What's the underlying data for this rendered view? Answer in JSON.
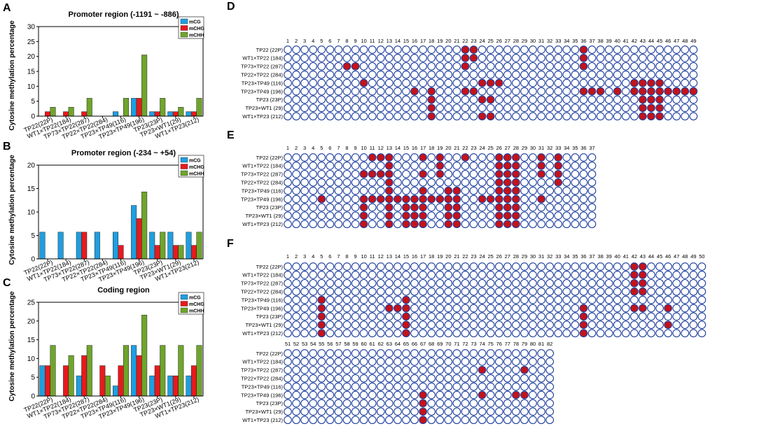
{
  "figure": {
    "colors": {
      "mCG": "#1e9fe0",
      "mCHG": "#e8191d",
      "mCHH": "#6fa52b",
      "dot_filled": "#c4131a",
      "dot_empty": "#1f3f9e"
    },
    "charts_common": {
      "ylabel": "Cytosine methylation percentage",
      "categories": [
        "TP22(22P)",
        "WT1×TP22(184)",
        "TP73×TP22(287)",
        "TP22×TP22(284)",
        "TP23×TP49(116)",
        "TP23×TP49(196)",
        "TP23(23P)",
        "TP23×WT1(29)",
        "WT1×TP23(212)"
      ],
      "legend": [
        "mCG",
        "mCHG",
        "mCHH"
      ]
    },
    "dot_panels": [
      {
        "letter": "D",
        "samples": [
          "TP22 (22P)",
          "WT1×TP22 (184)",
          "TP73×TP22 (287)",
          "TP22×TP22 (284)",
          "TP23×TP49 (116)",
          "TP23×TP49 (196)",
          "TP23 (23P)",
          "TP23×WT1 (29)",
          "WT1×TP23 (212)"
        ],
        "blocks": [
          {
            "start": 1,
            "count": 49,
            "filled": [
              [
                22,
                23,
                36
              ],
              [
                22,
                23,
                36
              ],
              [
                8,
                9,
                22,
                36
              ],
              [],
              [
                10,
                24,
                25,
                26,
                42,
                43,
                44,
                45
              ],
              [
                16,
                18,
                22,
                23,
                36,
                37,
                38,
                40,
                42,
                43,
                44,
                45,
                46,
                47,
                48,
                49
              ],
              [
                18,
                24,
                25,
                43,
                44,
                45
              ],
              [
                18,
                43,
                44,
                45
              ],
              [
                18,
                24,
                25,
                43,
                44,
                45
              ]
            ]
          }
        ]
      },
      {
        "letter": "E",
        "samples": [
          "TP22 (22P)",
          "WT1×TP22 (184)",
          "TP73×TP22 (287)",
          "TP22×TP22 (284)",
          "TP23×TP49 (116)",
          "TP23×TP49 (196)",
          "TP23 (23P)",
          "TP23×WT1 (29)",
          "WT1×TP23 (212)"
        ],
        "blocks": [
          {
            "start": 1,
            "count": 37,
            "filled": [
              [
                11,
                12,
                13,
                17,
                19,
                22,
                26,
                27,
                28,
                31,
                33
              ],
              [
                13,
                19,
                26,
                27,
                28,
                31,
                33
              ],
              [
                10,
                11,
                12,
                13,
                17,
                19,
                26,
                27,
                28,
                31,
                33
              ],
              [
                13,
                26,
                27,
                28,
                33
              ],
              [
                13,
                17,
                20,
                21,
                26,
                27,
                28
              ],
              [
                5,
                10,
                11,
                12,
                13,
                14,
                15,
                16,
                17,
                18,
                19,
                20,
                21,
                24,
                25,
                26,
                27,
                28,
                31
              ],
              [
                10,
                13,
                15,
                16,
                17,
                20,
                21,
                26,
                27,
                28
              ],
              [
                10,
                13,
                15,
                16,
                17,
                20,
                21,
                26,
                27,
                28
              ],
              [
                10,
                13,
                15,
                16,
                17,
                20,
                21,
                26,
                27,
                28
              ]
            ]
          }
        ]
      },
      {
        "letter": "F",
        "samples": [
          "TP22 (22P)",
          "WT1×TP22 (184)",
          "TP73×TP22 (287)",
          "TP22×TP22 (284)",
          "TP23×TP49 (116)",
          "TP23×TP49 (196)",
          "TP23 (23P)",
          "TP23×WT1 (29)",
          "WT1×TP23 (212)"
        ],
        "blocks": [
          {
            "start": 1,
            "count": 50,
            "filled": [
              [
                42,
                43
              ],
              [
                42,
                43
              ],
              [
                42,
                43
              ],
              [
                42,
                43
              ],
              [
                5,
                15
              ],
              [
                5,
                13,
                14,
                15,
                36,
                42,
                43,
                46
              ],
              [
                5,
                15,
                36
              ],
              [
                5,
                15,
                36,
                46
              ],
              [
                5,
                15,
                36
              ]
            ]
          },
          {
            "start": 51,
            "count": 32,
            "filled": [
              [],
              [],
              [
                74,
                79
              ],
              [],
              [],
              [
                67,
                74,
                78,
                79
              ],
              [
                67
              ],
              [
                67
              ],
              [
                67
              ]
            ]
          }
        ]
      }
    ]
  },
  "chart_data": [
    {
      "type": "bar",
      "panel": "A",
      "title": "Promoter region (-1191 ~ -886)",
      "categories": [
        "TP22(22P)",
        "WT1×TP22(184)",
        "TP73×TP22(287)",
        "TP22×TP22(284)",
        "TP23×TP49(116)",
        "TP23×TP49(196)",
        "TP23(23P)",
        "TP23×WT1(29)",
        "WT1×TP23(212)"
      ],
      "series": [
        {
          "name": "mCG",
          "values": [
            0,
            0,
            0,
            0,
            1.5,
            6,
            1.5,
            1.5,
            1.5
          ]
        },
        {
          "name": "mCHG",
          "values": [
            1.5,
            1.5,
            1.5,
            0,
            0,
            6,
            1.5,
            1.5,
            1.5
          ]
        },
        {
          "name": "mCHH",
          "values": [
            3,
            3,
            6,
            0,
            6,
            20.5,
            6,
            3,
            6
          ]
        }
      ],
      "ylabel": "Cytosine methylation percentage",
      "ylim": [
        0,
        30
      ],
      "yticks": [
        0,
        5,
        10,
        15,
        20,
        25,
        30
      ]
    },
    {
      "type": "bar",
      "panel": "B",
      "title": "Promoter region (-234 ~ +54)",
      "categories": [
        "TP22(22P)",
        "WT1×TP22(184)",
        "TP73×TP22(287)",
        "TP22×TP22(284)",
        "TP23×TP49(116)",
        "TP23×TP49(196)",
        "TP23(23P)",
        "TP23×WT1(29)",
        "WT1×TP23(212)"
      ],
      "series": [
        {
          "name": "mCG",
          "values": [
            5.7,
            5.7,
            5.7,
            5.7,
            5.7,
            11.4,
            5.7,
            5.7,
            5.7
          ]
        },
        {
          "name": "mCHG",
          "values": [
            0,
            0,
            5.7,
            0,
            2.9,
            8.6,
            2.9,
            2.9,
            2.9
          ]
        },
        {
          "name": "mCHH",
          "values": [
            0,
            0,
            0,
            0,
            0,
            14.3,
            5.7,
            2.9,
            5.7
          ]
        }
      ],
      "ylabel": "Cytosine methylation percentage",
      "ylim": [
        0,
        20
      ],
      "yticks": [
        0,
        5,
        10,
        15,
        20
      ]
    },
    {
      "type": "bar",
      "panel": "C",
      "title": "Coding region",
      "categories": [
        "TP22(22P)",
        "WT1×TP22(184)",
        "TP73×TP22(287)",
        "TP22×TP22(284)",
        "TP23×TP49(116)",
        "TP23×TP49(196)",
        "TP23(23P)",
        "TP23×WT1(29)",
        "WT1×TP23(212)"
      ],
      "series": [
        {
          "name": "mCG",
          "values": [
            8.1,
            0,
            5.4,
            0,
            2.7,
            13.5,
            5.4,
            5.4,
            5.4
          ]
        },
        {
          "name": "mCHG",
          "values": [
            8.1,
            8.1,
            10.8,
            8.1,
            8.1,
            10.8,
            8.1,
            5.4,
            8.1
          ]
        },
        {
          "name": "mCHH",
          "values": [
            13.5,
            10.8,
            13.5,
            5.4,
            13.5,
            21.6,
            13.5,
            13.5,
            13.5
          ]
        }
      ],
      "ylabel": "Cytosine methylation percentage",
      "ylim": [
        0,
        25
      ],
      "yticks": [
        0,
        5,
        10,
        15,
        20,
        25
      ]
    }
  ]
}
